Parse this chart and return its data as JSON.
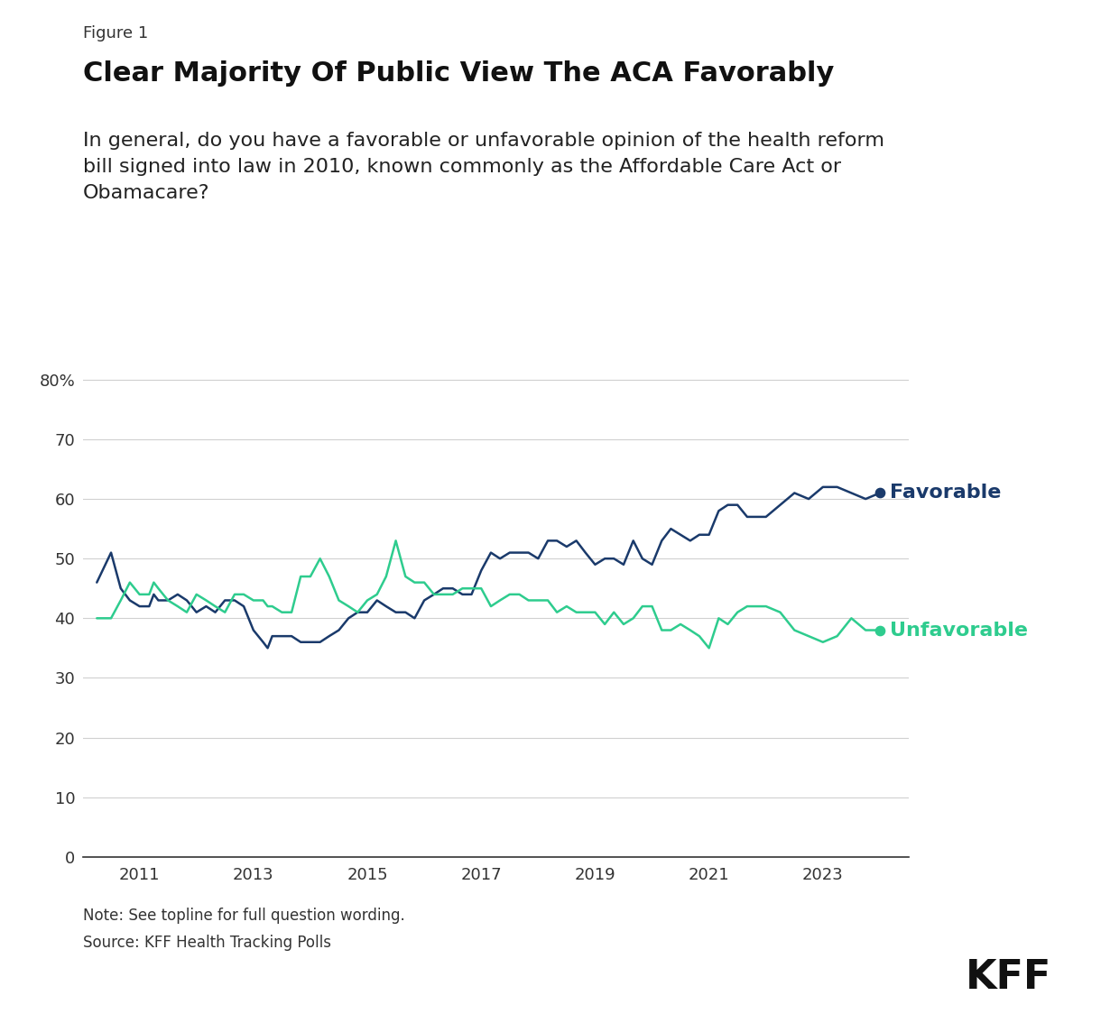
{
  "figure_label": "Figure 1",
  "title": "Clear Majority Of Public View The ACA Favorably",
  "subtitle": "In general, do you have a favorable or unfavorable opinion of the health reform\nbill signed into law in 2010, known commonly as the Affordable Care Act or\nObamacare?",
  "note": "Note: See topline for full question wording.",
  "source": "Source: KFF Health Tracking Polls",
  "favorable_color": "#1a3a6b",
  "unfavorable_color": "#2ecc8e",
  "background_color": "#ffffff",
  "ylim": [
    0,
    85
  ],
  "yticks": [
    0,
    10,
    20,
    30,
    40,
    50,
    60,
    70,
    80
  ],
  "ylabel_suffix": "%",
  "favorable_data": [
    [
      2010.25,
      46
    ],
    [
      2010.5,
      51
    ],
    [
      2010.67,
      45
    ],
    [
      2010.83,
      43
    ],
    [
      2011.0,
      42
    ],
    [
      2011.17,
      42
    ],
    [
      2011.25,
      44
    ],
    [
      2011.33,
      43
    ],
    [
      2011.5,
      43
    ],
    [
      2011.67,
      44
    ],
    [
      2011.83,
      43
    ],
    [
      2012.0,
      41
    ],
    [
      2012.17,
      42
    ],
    [
      2012.33,
      41
    ],
    [
      2012.5,
      43
    ],
    [
      2012.67,
      43
    ],
    [
      2012.83,
      42
    ],
    [
      2013.0,
      38
    ],
    [
      2013.17,
      36
    ],
    [
      2013.25,
      35
    ],
    [
      2013.33,
      37
    ],
    [
      2013.5,
      37
    ],
    [
      2013.67,
      37
    ],
    [
      2013.83,
      36
    ],
    [
      2014.0,
      36
    ],
    [
      2014.17,
      36
    ],
    [
      2014.33,
      37
    ],
    [
      2014.5,
      38
    ],
    [
      2014.67,
      40
    ],
    [
      2014.83,
      41
    ],
    [
      2015.0,
      41
    ],
    [
      2015.17,
      43
    ],
    [
      2015.33,
      42
    ],
    [
      2015.5,
      41
    ],
    [
      2015.67,
      41
    ],
    [
      2015.83,
      40
    ],
    [
      2016.0,
      43
    ],
    [
      2016.17,
      44
    ],
    [
      2016.33,
      45
    ],
    [
      2016.5,
      45
    ],
    [
      2016.67,
      44
    ],
    [
      2016.83,
      44
    ],
    [
      2017.0,
      48
    ],
    [
      2017.17,
      51
    ],
    [
      2017.33,
      50
    ],
    [
      2017.5,
      51
    ],
    [
      2017.67,
      51
    ],
    [
      2017.83,
      51
    ],
    [
      2018.0,
      50
    ],
    [
      2018.17,
      53
    ],
    [
      2018.33,
      53
    ],
    [
      2018.5,
      52
    ],
    [
      2018.67,
      53
    ],
    [
      2018.83,
      51
    ],
    [
      2019.0,
      49
    ],
    [
      2019.17,
      50
    ],
    [
      2019.33,
      50
    ],
    [
      2019.5,
      49
    ],
    [
      2019.67,
      53
    ],
    [
      2019.83,
      50
    ],
    [
      2020.0,
      49
    ],
    [
      2020.17,
      53
    ],
    [
      2020.33,
      55
    ],
    [
      2020.5,
      54
    ],
    [
      2020.67,
      53
    ],
    [
      2020.83,
      54
    ],
    [
      2021.0,
      54
    ],
    [
      2021.17,
      58
    ],
    [
      2021.33,
      59
    ],
    [
      2021.5,
      59
    ],
    [
      2021.67,
      57
    ],
    [
      2022.0,
      57
    ],
    [
      2022.25,
      59
    ],
    [
      2022.5,
      61
    ],
    [
      2022.75,
      60
    ],
    [
      2023.0,
      62
    ],
    [
      2023.25,
      62
    ],
    [
      2023.5,
      61
    ],
    [
      2023.75,
      60
    ],
    [
      2024.0,
      61
    ]
  ],
  "unfavorable_data": [
    [
      2010.25,
      40
    ],
    [
      2010.5,
      40
    ],
    [
      2010.67,
      43
    ],
    [
      2010.83,
      46
    ],
    [
      2011.0,
      44
    ],
    [
      2011.17,
      44
    ],
    [
      2011.25,
      46
    ],
    [
      2011.33,
      45
    ],
    [
      2011.5,
      43
    ],
    [
      2011.67,
      42
    ],
    [
      2011.83,
      41
    ],
    [
      2012.0,
      44
    ],
    [
      2012.17,
      43
    ],
    [
      2012.33,
      42
    ],
    [
      2012.5,
      41
    ],
    [
      2012.67,
      44
    ],
    [
      2012.83,
      44
    ],
    [
      2013.0,
      43
    ],
    [
      2013.17,
      43
    ],
    [
      2013.25,
      42
    ],
    [
      2013.33,
      42
    ],
    [
      2013.5,
      41
    ],
    [
      2013.67,
      41
    ],
    [
      2013.83,
      47
    ],
    [
      2014.0,
      47
    ],
    [
      2014.17,
      50
    ],
    [
      2014.33,
      47
    ],
    [
      2014.5,
      43
    ],
    [
      2014.67,
      42
    ],
    [
      2014.83,
      41
    ],
    [
      2015.0,
      43
    ],
    [
      2015.17,
      44
    ],
    [
      2015.33,
      47
    ],
    [
      2015.5,
      53
    ],
    [
      2015.67,
      47
    ],
    [
      2015.83,
      46
    ],
    [
      2016.0,
      46
    ],
    [
      2016.17,
      44
    ],
    [
      2016.33,
      44
    ],
    [
      2016.5,
      44
    ],
    [
      2016.67,
      45
    ],
    [
      2016.83,
      45
    ],
    [
      2017.0,
      45
    ],
    [
      2017.17,
      42
    ],
    [
      2017.33,
      43
    ],
    [
      2017.5,
      44
    ],
    [
      2017.67,
      44
    ],
    [
      2017.83,
      43
    ],
    [
      2018.0,
      43
    ],
    [
      2018.17,
      43
    ],
    [
      2018.33,
      41
    ],
    [
      2018.5,
      42
    ],
    [
      2018.67,
      41
    ],
    [
      2018.83,
      41
    ],
    [
      2019.0,
      41
    ],
    [
      2019.17,
      39
    ],
    [
      2019.33,
      41
    ],
    [
      2019.5,
      39
    ],
    [
      2019.67,
      40
    ],
    [
      2019.83,
      42
    ],
    [
      2020.0,
      42
    ],
    [
      2020.17,
      38
    ],
    [
      2020.33,
      38
    ],
    [
      2020.5,
      39
    ],
    [
      2020.67,
      38
    ],
    [
      2020.83,
      37
    ],
    [
      2021.0,
      35
    ],
    [
      2021.17,
      40
    ],
    [
      2021.33,
      39
    ],
    [
      2021.5,
      41
    ],
    [
      2021.67,
      42
    ],
    [
      2022.0,
      42
    ],
    [
      2022.25,
      41
    ],
    [
      2022.5,
      38
    ],
    [
      2022.75,
      37
    ],
    [
      2023.0,
      36
    ],
    [
      2023.25,
      37
    ],
    [
      2023.5,
      40
    ],
    [
      2023.75,
      38
    ],
    [
      2024.0,
      38
    ]
  ],
  "favorable_label": "Favorable",
  "unfavorable_label": "Unfavorable",
  "xlim": [
    2010.0,
    2024.5
  ],
  "xticks": [
    2011,
    2013,
    2015,
    2017,
    2019,
    2021,
    2023
  ]
}
